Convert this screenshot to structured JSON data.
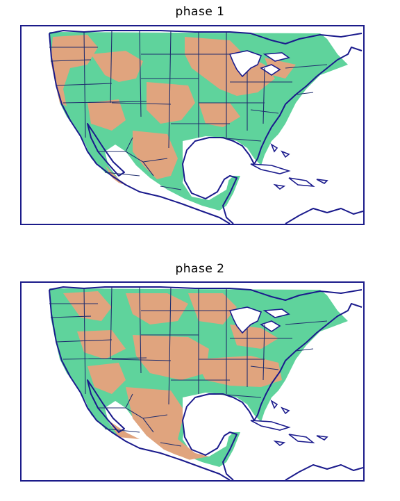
{
  "panels": [
    {
      "title": "phase 1"
    },
    {
      "title": "phase 2"
    }
  ],
  "legend_colors": {
    "positive": "#5fd39c",
    "negative": "#e0a47e",
    "outline": "#1a1a8c"
  }
}
